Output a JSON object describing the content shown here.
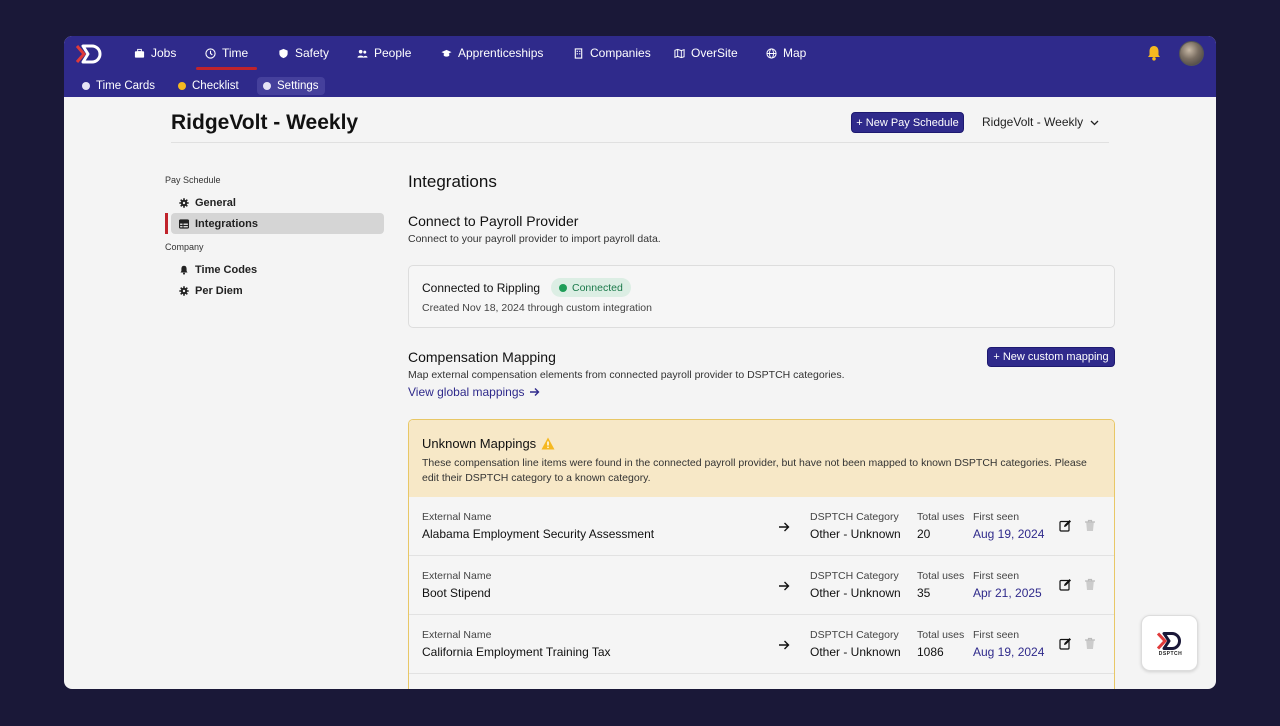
{
  "nav": {
    "items": [
      {
        "label": "Jobs",
        "icon": "briefcase-icon"
      },
      {
        "label": "Time",
        "icon": "clock-icon"
      },
      {
        "label": "Safety",
        "icon": "shield-icon"
      },
      {
        "label": "People",
        "icon": "people-icon"
      },
      {
        "label": "Apprenticeships",
        "icon": "graduation-cap-icon"
      },
      {
        "label": "Companies",
        "icon": "building-icon"
      },
      {
        "label": "OverSite",
        "icon": "map-fold-icon"
      },
      {
        "label": "Map",
        "icon": "globe-icon"
      }
    ],
    "active": "Time"
  },
  "subnav": {
    "items": [
      {
        "label": "Time Cards"
      },
      {
        "label": "Checklist"
      },
      {
        "label": "Settings"
      }
    ],
    "active": "Settings"
  },
  "header": {
    "title": "RidgeVolt - Weekly",
    "new_schedule_label": "+ New Pay Schedule",
    "schedule_select": "RidgeVolt - Weekly"
  },
  "sidebar": {
    "section_pay": "Pay Schedule",
    "pay_items": [
      {
        "label": "General",
        "icon": "gear-icon"
      },
      {
        "label": "Integrations",
        "icon": "table-icon"
      }
    ],
    "section_company": "Company",
    "company_items": [
      {
        "label": "Time Codes",
        "icon": "bell-icon"
      },
      {
        "label": "Per Diem",
        "icon": "gear-icon"
      }
    ],
    "active": "Integrations"
  },
  "main": {
    "title": "Integrations",
    "connect_heading": "Connect to Payroll Provider",
    "connect_desc": "Connect to your payroll provider to import payroll data.",
    "connection": {
      "title": "Connected to Rippling",
      "status": "Connected",
      "created": "Created Nov 18, 2024 through custom integration"
    },
    "comp_heading": "Compensation Mapping",
    "comp_desc": "Map external compensation elements from connected payroll provider to DSPTCH categories.",
    "view_global": "View global mappings",
    "new_mapping_label": "+ New custom mapping"
  },
  "unknown": {
    "title": "Unknown Mappings",
    "desc": "These compensation line items were found in the connected payroll provider, but have not been mapped to known DSPTCH categories. Please edit their DSPTCH category to a known category.",
    "col_external": "External Name",
    "col_category": "DSPTCH Category",
    "col_uses": "Total uses",
    "col_first": "First seen",
    "rows": [
      {
        "external": "Alabama Employment Security Assessment",
        "category": "Other - Unknown",
        "uses": "20",
        "first_seen": "Aug 19, 2024"
      },
      {
        "external": "Boot Stipend",
        "category": "Other - Unknown",
        "uses": "35",
        "first_seen": "Apr 21, 2025"
      },
      {
        "external": "California Employment Training Tax",
        "category": "Other - Unknown",
        "uses": "1086",
        "first_seen": "Aug 19, 2024"
      },
      {
        "external": "",
        "category": "",
        "uses": "",
        "first_seen": ""
      }
    ]
  },
  "widget": {
    "brand": "DSPTCH"
  },
  "colors": {
    "brand": "#2f2a8b",
    "accent_red": "#c0232b",
    "warning_bg": "#f7e8c7",
    "success": "#1f9d58"
  }
}
